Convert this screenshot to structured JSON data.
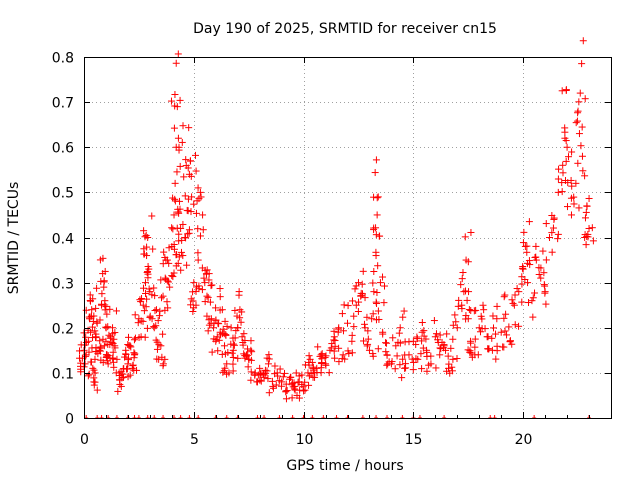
{
  "chart_data": {
    "type": "scatter",
    "title": "Day 190 of 2025, SRMTID for receiver cn15",
    "xlabel": "GPS time / hours",
    "ylabel": "SRMTID / TECUs",
    "xlim": [
      0,
      24
    ],
    "ylim": [
      0,
      0.8
    ],
    "x_ticks": [
      0,
      5,
      10,
      15,
      20
    ],
    "y_ticks": [
      0,
      0.1,
      0.2,
      0.3,
      0.4,
      0.5,
      0.6,
      0.7,
      0.8
    ],
    "x_tick_labels": [
      "0",
      "5",
      "10",
      "15",
      "20"
    ],
    "y_tick_labels": [
      "0",
      "0.1",
      "0.2",
      "0.3",
      "0.4",
      "0.5",
      "0.6",
      "0.7",
      "0.8"
    ],
    "grid": true,
    "marker": "plus",
    "color": "#ff0000",
    "series": [
      {
        "name": "SRMTID",
        "points": [
          [
            0.0,
            0.15
          ],
          [
            0.05,
            0.12
          ],
          [
            0.1,
            0.14
          ],
          [
            0.2,
            0.17
          ],
          [
            0.25,
            0.22
          ],
          [
            0.3,
            0.19
          ],
          [
            0.35,
            0.24
          ],
          [
            0.4,
            0.11
          ],
          [
            0.45,
            0.08
          ],
          [
            0.5,
            0.13
          ],
          [
            0.55,
            0.18
          ],
          [
            0.6,
            0.21
          ],
          [
            0.7,
            0.15
          ],
          [
            0.8,
            0.25
          ],
          [
            0.85,
            0.32
          ],
          [
            0.9,
            0.29
          ],
          [
            0.95,
            0.26
          ],
          [
            1.0,
            0.17
          ],
          [
            1.05,
            0.14
          ],
          [
            1.1,
            0.12
          ],
          [
            1.2,
            0.18
          ],
          [
            1.3,
            0.2
          ],
          [
            1.4,
            0.16
          ],
          [
            1.5,
            0.13
          ],
          [
            1.6,
            0.1
          ],
          [
            1.7,
            0.07
          ],
          [
            1.8,
            0.09
          ],
          [
            1.9,
            0.15
          ],
          [
            2.0,
            0.12
          ],
          [
            2.1,
            0.16
          ],
          [
            2.2,
            0.11
          ],
          [
            2.3,
            0.14
          ],
          [
            2.5,
            0.22
          ],
          [
            2.6,
            0.18
          ],
          [
            2.7,
            0.25
          ],
          [
            2.8,
            0.3
          ],
          [
            2.85,
            0.36
          ],
          [
            2.9,
            0.4
          ],
          [
            2.95,
            0.33
          ],
          [
            3.0,
            0.28
          ],
          [
            3.1,
            0.22
          ],
          [
            3.2,
            0.2
          ],
          [
            3.3,
            0.24
          ],
          [
            3.4,
            0.13
          ],
          [
            3.5,
            0.16
          ],
          [
            3.6,
            0.27
          ],
          [
            3.7,
            0.31
          ],
          [
            3.8,
            0.35
          ],
          [
            3.9,
            0.29
          ],
          [
            4.0,
            0.38
          ],
          [
            4.1,
            0.45
          ],
          [
            4.15,
            0.52
          ],
          [
            4.2,
            0.6
          ],
          [
            4.25,
            0.69
          ],
          [
            4.3,
            0.62
          ],
          [
            4.35,
            0.48
          ],
          [
            4.4,
            0.42
          ],
          [
            4.5,
            0.36
          ],
          [
            4.6,
            0.4
          ],
          [
            4.7,
            0.46
          ],
          [
            4.8,
            0.54
          ],
          [
            4.85,
            0.57
          ],
          [
            4.9,
            0.49
          ],
          [
            5.0,
            0.3
          ],
          [
            5.1,
            0.25
          ],
          [
            5.2,
            0.35
          ],
          [
            5.3,
            0.5
          ],
          [
            5.4,
            0.45
          ],
          [
            5.5,
            0.3
          ],
          [
            5.6,
            0.27
          ],
          [
            5.7,
            0.32
          ],
          [
            5.8,
            0.22
          ],
          [
            5.9,
            0.2
          ],
          [
            6.0,
            0.17
          ],
          [
            6.1,
            0.21
          ],
          [
            6.2,
            0.19
          ],
          [
            6.3,
            0.24
          ],
          [
            6.4,
            0.16
          ],
          [
            6.5,
            0.12
          ],
          [
            6.6,
            0.1
          ],
          [
            6.7,
            0.2
          ],
          [
            6.8,
            0.15
          ],
          [
            7.0,
            0.2
          ],
          [
            7.1,
            0.24
          ],
          [
            7.2,
            0.18
          ],
          [
            7.4,
            0.14
          ],
          [
            7.5,
            0.13
          ],
          [
            7.6,
            0.15
          ],
          [
            7.8,
            0.1
          ],
          [
            7.9,
            0.08
          ],
          [
            8.0,
            0.11
          ],
          [
            8.2,
            0.09
          ],
          [
            8.4,
            0.12
          ],
          [
            8.6,
            0.07
          ],
          [
            8.8,
            0.1
          ],
          [
            9.0,
            0.08
          ],
          [
            9.2,
            0.06
          ],
          [
            9.4,
            0.09
          ],
          [
            9.6,
            0.07
          ],
          [
            9.7,
            0.05
          ],
          [
            9.8,
            0.08
          ],
          [
            10.0,
            0.06
          ],
          [
            10.2,
            0.1
          ],
          [
            10.3,
            0.13
          ],
          [
            10.5,
            0.09
          ],
          [
            10.6,
            0.11
          ],
          [
            10.8,
            0.14
          ],
          [
            11.0,
            0.12
          ],
          [
            11.2,
            0.15
          ],
          [
            11.4,
            0.18
          ],
          [
            11.6,
            0.2
          ],
          [
            11.8,
            0.14
          ],
          [
            12.0,
            0.21
          ],
          [
            12.2,
            0.17
          ],
          [
            12.4,
            0.25
          ],
          [
            12.5,
            0.3
          ],
          [
            12.6,
            0.27
          ],
          [
            12.8,
            0.2
          ],
          [
            13.0,
            0.15
          ],
          [
            13.1,
            0.22
          ],
          [
            13.2,
            0.28
          ],
          [
            13.3,
            0.36
          ],
          [
            13.35,
            0.45
          ],
          [
            13.4,
            0.49
          ],
          [
            13.5,
            0.3
          ],
          [
            13.6,
            0.19
          ],
          [
            13.8,
            0.14
          ],
          [
            14.0,
            0.12
          ],
          [
            14.2,
            0.16
          ],
          [
            14.4,
            0.2
          ],
          [
            14.6,
            0.11
          ],
          [
            14.8,
            0.14
          ],
          [
            15.0,
            0.17
          ],
          [
            15.2,
            0.13
          ],
          [
            15.4,
            0.19
          ],
          [
            15.6,
            0.15
          ],
          [
            15.8,
            0.12
          ],
          [
            16.0,
            0.18
          ],
          [
            16.2,
            0.14
          ],
          [
            16.4,
            0.16
          ],
          [
            16.6,
            0.11
          ],
          [
            16.8,
            0.13
          ],
          [
            17.0,
            0.2
          ],
          [
            17.2,
            0.25
          ],
          [
            17.3,
            0.28
          ],
          [
            17.4,
            0.35
          ],
          [
            17.5,
            0.22
          ],
          [
            17.6,
            0.17
          ],
          [
            17.8,
            0.14
          ],
          [
            18.0,
            0.2
          ],
          [
            18.2,
            0.24
          ],
          [
            18.4,
            0.18
          ],
          [
            18.6,
            0.15
          ],
          [
            18.8,
            0.22
          ],
          [
            19.0,
            0.19
          ],
          [
            19.2,
            0.23
          ],
          [
            19.4,
            0.17
          ],
          [
            19.6,
            0.25
          ],
          [
            19.8,
            0.28
          ],
          [
            20.0,
            0.33
          ],
          [
            20.1,
            0.38
          ],
          [
            20.2,
            0.3
          ],
          [
            20.4,
            0.26
          ],
          [
            20.6,
            0.35
          ],
          [
            20.8,
            0.31
          ],
          [
            21.0,
            0.28
          ],
          [
            21.2,
            0.4
          ],
          [
            21.4,
            0.44
          ],
          [
            21.6,
            0.5
          ],
          [
            21.8,
            0.56
          ],
          [
            21.9,
            0.62
          ],
          [
            22.0,
            0.6
          ],
          [
            22.2,
            0.45
          ],
          [
            22.4,
            0.52
          ],
          [
            22.5,
            0.68
          ],
          [
            22.6,
            0.72
          ],
          [
            22.7,
            0.58
          ],
          [
            22.8,
            0.4
          ],
          [
            22.9,
            0.47
          ],
          [
            23.0,
            0.42
          ]
        ],
        "zero_points": [
          0.1,
          0.6,
          0.8,
          1.1,
          1.5,
          2.0,
          2.3,
          2.5,
          2.9,
          3.2,
          3.6,
          4.1,
          4.4,
          4.8,
          5.2,
          6.0,
          6.5,
          7.0,
          7.9,
          8.2,
          8.9,
          9.5,
          10.0,
          10.4,
          10.9,
          11.5,
          12.0,
          12.7,
          13.3,
          13.8,
          14.5,
          15.0,
          15.3,
          16.4,
          18.5,
          18.7,
          20.5,
          23.0
        ]
      }
    ]
  }
}
